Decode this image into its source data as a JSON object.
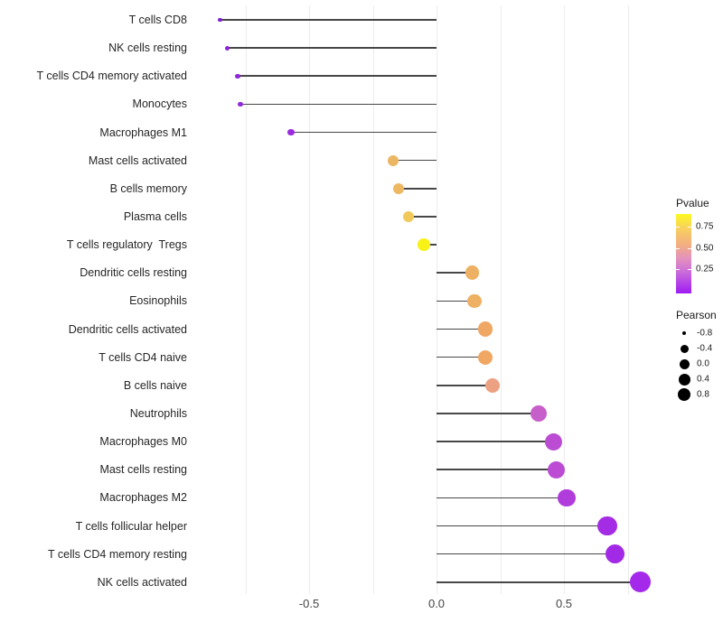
{
  "chart_data": {
    "type": "lollipop",
    "orientation": "horizontal",
    "x_axis": {
      "tick_labels": [
        "-0.5",
        "0.0",
        "0.5"
      ],
      "tick_values": [
        -0.5,
        0.0,
        0.5
      ],
      "gridline_values": [
        -0.75,
        -0.5,
        -0.25,
        0.0,
        0.25,
        0.5,
        0.75
      ],
      "xlim": [
        -0.96,
        0.98
      ]
    },
    "points": [
      {
        "label": "T cells CD8",
        "pearson": -0.85,
        "color": "#8021d0"
      },
      {
        "label": "NK cells resting",
        "pearson": -0.82,
        "color": "#8b24d8"
      },
      {
        "label": "T cells CD4 memory activated",
        "pearson": -0.78,
        "color": "#8e26d9"
      },
      {
        "label": "Monocytes",
        "pearson": -0.77,
        "color": "#9029da"
      },
      {
        "label": "Macrophages M1",
        "pearson": -0.57,
        "color": "#9b2be0"
      },
      {
        "label": "Mast cells activated",
        "pearson": -0.17,
        "color": "#ecb765"
      },
      {
        "label": "B cells memory",
        "pearson": -0.15,
        "color": "#eeb863"
      },
      {
        "label": "Plasma cells",
        "pearson": -0.11,
        "color": "#f0c95a"
      },
      {
        "label": "T cells regulatory  Tregs",
        "pearson": -0.05,
        "color": "#f8f216"
      },
      {
        "label": "Dendritic cells resting",
        "pearson": 0.14,
        "color": "#eeb062"
      },
      {
        "label": "Eosinophils",
        "pearson": 0.15,
        "color": "#eeb062"
      },
      {
        "label": "Dendritic cells activated",
        "pearson": 0.19,
        "color": "#f0a763"
      },
      {
        "label": "T cells CD4 naive",
        "pearson": 0.19,
        "color": "#f0a763"
      },
      {
        "label": "B cells naive",
        "pearson": 0.22,
        "color": "#eda183"
      },
      {
        "label": "Neutrophils",
        "pearson": 0.4,
        "color": "#c65fc9"
      },
      {
        "label": "Macrophages M0",
        "pearson": 0.46,
        "color": "#bb4cd3"
      },
      {
        "label": "Mast cells resting",
        "pearson": 0.47,
        "color": "#bb4cd3"
      },
      {
        "label": "Macrophages M2",
        "pearson": 0.51,
        "color": "#b13cdc"
      },
      {
        "label": "T cells follicular helper",
        "pearson": 0.67,
        "color": "#a42ce4"
      },
      {
        "label": "T cells CD4 memory resting",
        "pearson": 0.7,
        "color": "#a229e6"
      },
      {
        "label": "NK cells activated",
        "pearson": 0.8,
        "color": "#a429ea"
      }
    ],
    "legend": {
      "pvalue": {
        "title": "Pvalue",
        "ticks": [
          {
            "label": "0.75",
            "y": 14
          },
          {
            "label": "0.50",
            "y": 38
          },
          {
            "label": "0.25",
            "y": 61
          }
        ],
        "gradient_stops": [
          "#fcf921 0%",
          "#f8d05e 18%",
          "#f3b07f 38%",
          "#e593bb 55%",
          "#cc6fd8 72%",
          "#b23fe8 88%",
          "#9c1cf2 100%"
        ]
      },
      "pearson": {
        "title": "Pearson",
        "items": [
          {
            "label": "-0.8",
            "r": 2.4
          },
          {
            "label": "-0.4",
            "r": 4.5
          },
          {
            "label": "0.0",
            "r": 5.5
          },
          {
            "label": "0.4",
            "r": 6.5
          },
          {
            "label": "0.8",
            "r": 7.2
          }
        ]
      }
    },
    "style": {
      "stem_color": "#474747",
      "grid_color": "#ececec",
      "axis_text_color": "#454545",
      "label_text_color": "#262626",
      "background": "#ffffff"
    }
  }
}
